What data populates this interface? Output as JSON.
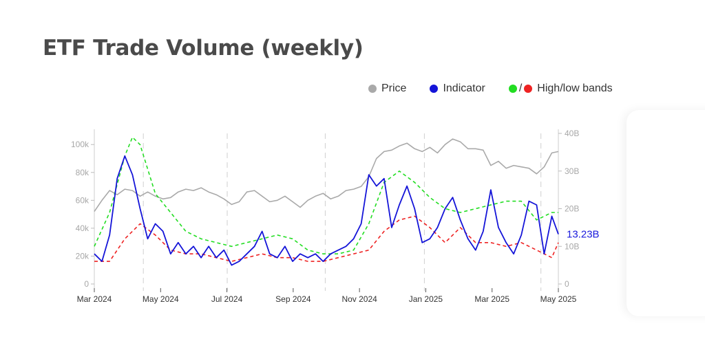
{
  "title": "ETF Trade Volume (weekly)",
  "legend": {
    "price": "Price",
    "indicator": "Indicator",
    "slash": "/",
    "bands": "High/low bands"
  },
  "colors": {
    "price": "#a9a9a9",
    "indicator": "#1414d8",
    "high_band": "#22dd22",
    "low_band": "#ee2222"
  },
  "chart_data": {
    "type": "line",
    "x_tick_labels": [
      "Mar 2024",
      "May 2024",
      "Jul 2024",
      "Sep 2024",
      "Nov 2024",
      "Jan 2025",
      "Mar 2025",
      "May 2025"
    ],
    "x_range": [
      "2024-03-01",
      "2025-05-01"
    ],
    "y_left": {
      "ticks": [
        0,
        20000,
        40000,
        60000,
        80000,
        100000
      ],
      "tick_labels": [
        "0",
        "20k",
        "40k",
        "60k",
        "80k",
        "100k"
      ],
      "range": [
        0,
        108000
      ]
    },
    "y_right": {
      "ticks": [
        0,
        10,
        20,
        30,
        40
      ],
      "tick_labels": [
        "0",
        "10B",
        "20B",
        "30B",
        "40B"
      ],
      "range": [
        0,
        40
      ]
    },
    "vertical_gridlines": [
      "2024-04-15",
      "2024-07-01",
      "2024-09-29",
      "2024-12-29",
      "2025-04-15"
    ],
    "end_label": "13.23B",
    "series": [
      {
        "name": "Price",
        "axis": "left",
        "style": "solid",
        "points": [
          [
            "2024-03-01",
            52000
          ],
          [
            "2024-03-08",
            60000
          ],
          [
            "2024-03-15",
            67000
          ],
          [
            "2024-03-22",
            64000
          ],
          [
            "2024-03-29",
            68000
          ],
          [
            "2024-04-05",
            67000
          ],
          [
            "2024-04-12",
            63000
          ],
          [
            "2024-04-19",
            66000
          ],
          [
            "2024-04-26",
            63000
          ],
          [
            "2024-05-03",
            61000
          ],
          [
            "2024-05-10",
            62000
          ],
          [
            "2024-05-17",
            66000
          ],
          [
            "2024-05-24",
            68000
          ],
          [
            "2024-05-31",
            67000
          ],
          [
            "2024-06-07",
            69000
          ],
          [
            "2024-06-14",
            66000
          ],
          [
            "2024-06-21",
            64000
          ],
          [
            "2024-06-28",
            61000
          ],
          [
            "2024-07-05",
            57000
          ],
          [
            "2024-07-12",
            59000
          ],
          [
            "2024-07-19",
            66000
          ],
          [
            "2024-07-26",
            67000
          ],
          [
            "2024-08-02",
            63000
          ],
          [
            "2024-08-09",
            59000
          ],
          [
            "2024-08-16",
            60000
          ],
          [
            "2024-08-23",
            63000
          ],
          [
            "2024-08-30",
            59000
          ],
          [
            "2024-09-06",
            55000
          ],
          [
            "2024-09-13",
            60000
          ],
          [
            "2024-09-20",
            63000
          ],
          [
            "2024-09-27",
            65000
          ],
          [
            "2024-10-04",
            61000
          ],
          [
            "2024-10-11",
            63000
          ],
          [
            "2024-10-18",
            67000
          ],
          [
            "2024-10-25",
            68000
          ],
          [
            "2024-11-01",
            70000
          ],
          [
            "2024-11-08",
            77000
          ],
          [
            "2024-11-15",
            90000
          ],
          [
            "2024-11-22",
            95000
          ],
          [
            "2024-11-29",
            96000
          ],
          [
            "2024-12-06",
            99000
          ],
          [
            "2024-12-13",
            101000
          ],
          [
            "2024-12-20",
            97000
          ],
          [
            "2024-12-27",
            95000
          ],
          [
            "2025-01-03",
            98000
          ],
          [
            "2025-01-10",
            94000
          ],
          [
            "2025-01-17",
            100000
          ],
          [
            "2025-01-24",
            104000
          ],
          [
            "2025-01-31",
            102000
          ],
          [
            "2025-02-07",
            97000
          ],
          [
            "2025-02-14",
            97000
          ],
          [
            "2025-02-21",
            96000
          ],
          [
            "2025-02-28",
            85000
          ],
          [
            "2025-03-07",
            88000
          ],
          [
            "2025-03-14",
            83000
          ],
          [
            "2025-03-21",
            85000
          ],
          [
            "2025-03-28",
            84000
          ],
          [
            "2025-04-04",
            83000
          ],
          [
            "2025-04-11",
            79000
          ],
          [
            "2025-04-18",
            84000
          ],
          [
            "2025-04-25",
            94000
          ],
          [
            "2025-05-01",
            95000
          ]
        ]
      },
      {
        "name": "Indicator",
        "axis": "right",
        "style": "solid",
        "points": [
          [
            "2024-03-01",
            8
          ],
          [
            "2024-03-08",
            6
          ],
          [
            "2024-03-15",
            13
          ],
          [
            "2024-03-22",
            28
          ],
          [
            "2024-03-29",
            34
          ],
          [
            "2024-04-05",
            29
          ],
          [
            "2024-04-12",
            20
          ],
          [
            "2024-04-19",
            12
          ],
          [
            "2024-04-26",
            16
          ],
          [
            "2024-05-03",
            14
          ],
          [
            "2024-05-10",
            8
          ],
          [
            "2024-05-17",
            11
          ],
          [
            "2024-05-24",
            8
          ],
          [
            "2024-05-31",
            10
          ],
          [
            "2024-06-07",
            7
          ],
          [
            "2024-06-14",
            10
          ],
          [
            "2024-06-21",
            7
          ],
          [
            "2024-06-28",
            9
          ],
          [
            "2024-07-05",
            5
          ],
          [
            "2024-07-12",
            6
          ],
          [
            "2024-07-19",
            8
          ],
          [
            "2024-07-26",
            10
          ],
          [
            "2024-08-02",
            14
          ],
          [
            "2024-08-09",
            8
          ],
          [
            "2024-08-16",
            7
          ],
          [
            "2024-08-23",
            10
          ],
          [
            "2024-08-30",
            6
          ],
          [
            "2024-09-06",
            8
          ],
          [
            "2024-09-13",
            7
          ],
          [
            "2024-09-20",
            8
          ],
          [
            "2024-09-27",
            6
          ],
          [
            "2024-10-04",
            8
          ],
          [
            "2024-10-11",
            9
          ],
          [
            "2024-10-18",
            10
          ],
          [
            "2024-10-25",
            12
          ],
          [
            "2024-11-01",
            16
          ],
          [
            "2024-11-08",
            29
          ],
          [
            "2024-11-15",
            26
          ],
          [
            "2024-11-22",
            28
          ],
          [
            "2024-11-29",
            15
          ],
          [
            "2024-12-06",
            21
          ],
          [
            "2024-12-13",
            26
          ],
          [
            "2024-12-20",
            20
          ],
          [
            "2024-12-27",
            11
          ],
          [
            "2025-01-03",
            12
          ],
          [
            "2025-01-10",
            15
          ],
          [
            "2025-01-17",
            20
          ],
          [
            "2025-01-24",
            23
          ],
          [
            "2025-01-31",
            17
          ],
          [
            "2025-02-07",
            12
          ],
          [
            "2025-02-14",
            9
          ],
          [
            "2025-02-21",
            14
          ],
          [
            "2025-02-28",
            25
          ],
          [
            "2025-03-07",
            15
          ],
          [
            "2025-03-14",
            11
          ],
          [
            "2025-03-21",
            8
          ],
          [
            "2025-03-28",
            13
          ],
          [
            "2025-04-04",
            22
          ],
          [
            "2025-04-11",
            21
          ],
          [
            "2025-04-18",
            8
          ],
          [
            "2025-04-25",
            18
          ],
          [
            "2025-05-01",
            13.23
          ]
        ]
      },
      {
        "name": "High band",
        "axis": "right",
        "style": "dashed",
        "points": [
          [
            "2024-03-01",
            10
          ],
          [
            "2024-03-15",
            19
          ],
          [
            "2024-03-29",
            34
          ],
          [
            "2024-04-05",
            39
          ],
          [
            "2024-04-12",
            37
          ],
          [
            "2024-04-26",
            24
          ],
          [
            "2024-05-10",
            19
          ],
          [
            "2024-05-24",
            14
          ],
          [
            "2024-06-07",
            12
          ],
          [
            "2024-06-21",
            11
          ],
          [
            "2024-07-05",
            10
          ],
          [
            "2024-07-19",
            11
          ],
          [
            "2024-08-02",
            12
          ],
          [
            "2024-08-16",
            13
          ],
          [
            "2024-08-30",
            12
          ],
          [
            "2024-09-13",
            9
          ],
          [
            "2024-09-27",
            8
          ],
          [
            "2024-10-11",
            8
          ],
          [
            "2024-10-25",
            9
          ],
          [
            "2024-11-08",
            16
          ],
          [
            "2024-11-22",
            27
          ],
          [
            "2024-12-06",
            30
          ],
          [
            "2024-12-20",
            27
          ],
          [
            "2025-01-03",
            23
          ],
          [
            "2025-01-17",
            20
          ],
          [
            "2025-01-31",
            19
          ],
          [
            "2025-02-14",
            20
          ],
          [
            "2025-02-28",
            21
          ],
          [
            "2025-03-14",
            22
          ],
          [
            "2025-03-28",
            22
          ],
          [
            "2025-04-11",
            17
          ],
          [
            "2025-04-25",
            19
          ],
          [
            "2025-05-01",
            19
          ]
        ]
      },
      {
        "name": "Low band",
        "axis": "right",
        "style": "dashed",
        "points": [
          [
            "2024-03-01",
            6
          ],
          [
            "2024-03-15",
            6
          ],
          [
            "2024-03-29",
            12
          ],
          [
            "2024-04-12",
            16
          ],
          [
            "2024-04-26",
            13
          ],
          [
            "2024-05-10",
            9
          ],
          [
            "2024-05-24",
            8
          ],
          [
            "2024-06-07",
            8
          ],
          [
            "2024-06-21",
            7
          ],
          [
            "2024-07-05",
            6
          ],
          [
            "2024-07-19",
            7
          ],
          [
            "2024-08-02",
            8
          ],
          [
            "2024-08-16",
            7
          ],
          [
            "2024-08-30",
            7
          ],
          [
            "2024-09-13",
            6
          ],
          [
            "2024-09-27",
            6
          ],
          [
            "2024-10-11",
            7
          ],
          [
            "2024-10-25",
            8
          ],
          [
            "2024-11-08",
            9
          ],
          [
            "2024-11-22",
            14
          ],
          [
            "2024-12-06",
            17
          ],
          [
            "2024-12-20",
            18
          ],
          [
            "2025-01-03",
            15
          ],
          [
            "2025-01-17",
            11
          ],
          [
            "2025-01-31",
            15
          ],
          [
            "2025-02-14",
            11
          ],
          [
            "2025-02-28",
            11
          ],
          [
            "2025-03-14",
            10
          ],
          [
            "2025-03-28",
            11
          ],
          [
            "2025-04-11",
            9
          ],
          [
            "2025-04-25",
            7
          ],
          [
            "2025-05-01",
            11
          ]
        ]
      }
    ]
  }
}
